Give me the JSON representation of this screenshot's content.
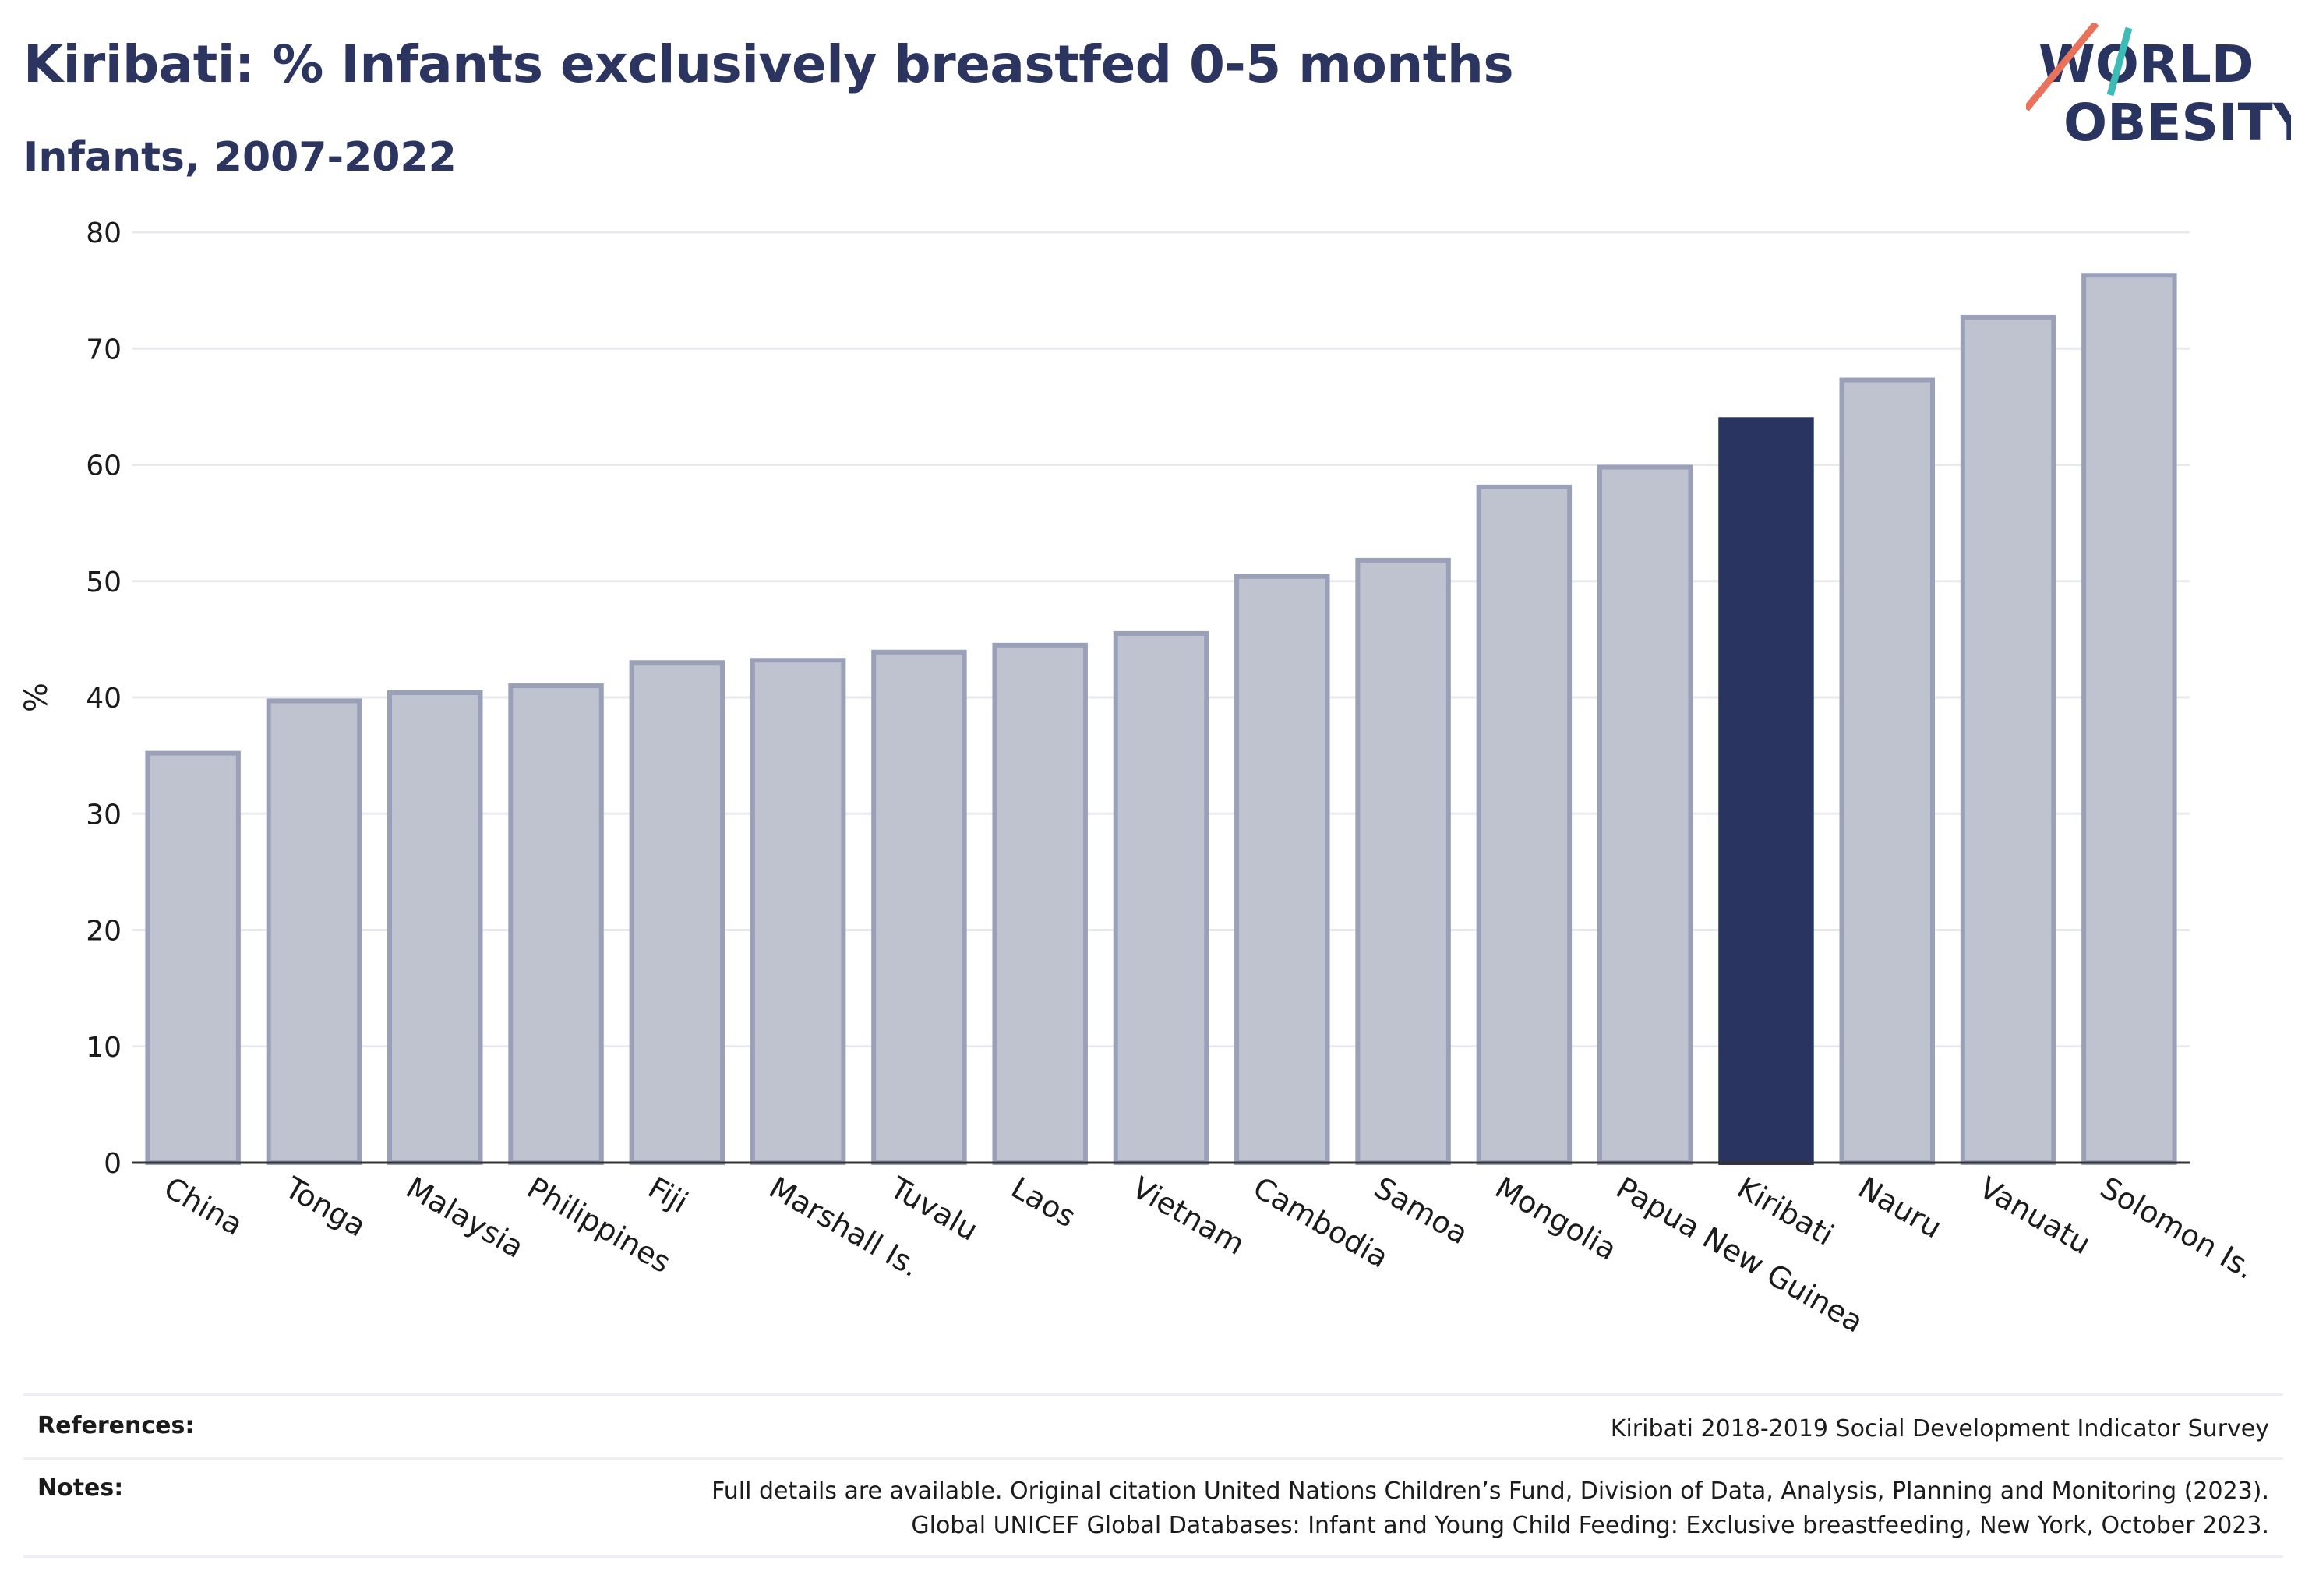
{
  "header": {
    "title": "Kiribati: % Infants exclusively breastfed 0-5 months",
    "subtitle": "Infants, 2007-2022"
  },
  "logo": {
    "line1": "WORLD",
    "line2": "OBESITY"
  },
  "colors": {
    "highlight": "#2a3461",
    "bar_fill": "#bfc2cf",
    "bar_stroke": "#9aa0b8",
    "grid": "#e8e9ef",
    "logo_teal": "#3cbcb4",
    "logo_coral": "#e8725c"
  },
  "chart_data": {
    "type": "bar",
    "title": "Kiribati: % Infants exclusively breastfed 0-5 months",
    "subtitle": "Infants, 2007-2022",
    "xlabel": "",
    "ylabel": "%",
    "ylim": [
      0,
      80
    ],
    "yticks": [
      0,
      10,
      20,
      30,
      40,
      50,
      60,
      70,
      80
    ],
    "grid": true,
    "highlight": "Kiribati",
    "categories": [
      "China",
      "Tonga",
      "Malaysia",
      "Philippines",
      "Fiji",
      "Marshall Is.",
      "Tuvalu",
      "Laos",
      "Vietnam",
      "Cambodia",
      "Samoa",
      "Mongolia",
      "Papua New Guinea",
      "Kiribati",
      "Nauru",
      "Vanuatu",
      "Solomon Is."
    ],
    "values": [
      35.2,
      39.7,
      40.4,
      41.0,
      43.0,
      43.2,
      43.9,
      44.5,
      45.5,
      50.4,
      51.8,
      58.1,
      59.8,
      63.9,
      67.3,
      72.7,
      76.3
    ]
  },
  "footer": {
    "references_label": "References:",
    "references_value": "Kiribati 2018-2019 Social Development Indicator Survey",
    "notes_label": "Notes:",
    "notes_line1": "Full details are available. Original citation United Nations Children’s Fund, Division of Data, Analysis, Planning and Monitoring (2023).",
    "notes_line2": "Global UNICEF Global Databases: Infant and Young Child Feeding: Exclusive breastfeeding, New York, October 2023."
  }
}
